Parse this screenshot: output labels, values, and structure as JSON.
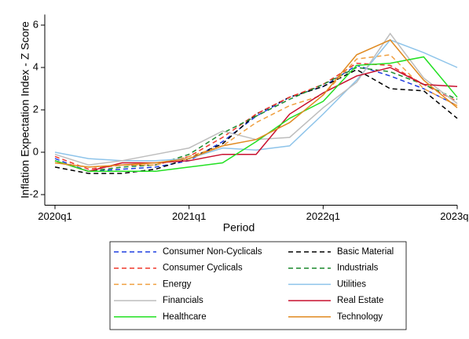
{
  "chart_data": {
    "type": "line",
    "x_label": "Period",
    "y_label": "Inflation Expectation Index - Z Score",
    "categories": [
      "2020q1",
      null,
      null,
      null,
      "2021q1",
      null,
      null,
      null,
      "2022q1",
      null,
      null,
      null,
      "2023q1"
    ],
    "ylim": [
      -2.5,
      6.5
    ],
    "yticks": [
      -2,
      0,
      2,
      4,
      6
    ],
    "grid": false,
    "series": [
      {
        "name": "Consumer Non-Cyclicals",
        "color": "#1f3ee0",
        "dashed": true,
        "values": [
          -0.3,
          -0.9,
          -0.8,
          -0.7,
          -0.4,
          0.5,
          1.7,
          2.6,
          3.1,
          4.1,
          3.6,
          3.0,
          2.2
        ]
      },
      {
        "name": "Basic Material",
        "color": "#000000",
        "dashed": true,
        "values": [
          -0.7,
          -1.0,
          -1.0,
          -0.8,
          -0.3,
          0.4,
          1.8,
          2.6,
          3.1,
          3.9,
          3.0,
          2.9,
          1.6
        ]
      },
      {
        "name": "Consumer Cyclicals",
        "color": "#f03a2e",
        "dashed": true,
        "values": [
          -0.2,
          -0.8,
          -0.6,
          -0.6,
          -0.2,
          0.7,
          1.8,
          2.6,
          3.2,
          4.2,
          4.1,
          3.2,
          2.4
        ]
      },
      {
        "name": "Industrials",
        "color": "#1c8a2e",
        "dashed": true,
        "values": [
          -0.4,
          -0.9,
          -0.7,
          -0.6,
          -0.1,
          0.9,
          1.7,
          2.5,
          3.2,
          4.0,
          3.8,
          3.2,
          2.5
        ]
      },
      {
        "name": "Energy",
        "color": "#f0a040",
        "dashed": true,
        "values": [
          -0.5,
          -0.7,
          -0.6,
          -0.6,
          -0.2,
          0.3,
          1.4,
          2.2,
          2.7,
          4.4,
          4.6,
          3.0,
          2.2
        ]
      },
      {
        "name": "Utilities",
        "color": "#8ec4ea",
        "dashed": false,
        "values": [
          0.0,
          -0.3,
          -0.4,
          -0.4,
          -0.3,
          0.2,
          0.1,
          0.3,
          1.8,
          3.4,
          5.3,
          4.7,
          4.0
        ]
      },
      {
        "name": "Financials",
        "color": "#bdbdbd",
        "dashed": false,
        "values": [
          -0.1,
          -0.6,
          -0.4,
          -0.1,
          0.2,
          1.0,
          0.6,
          0.7,
          2.1,
          3.3,
          5.6,
          3.5,
          2.3
        ]
      },
      {
        "name": "Real Estate",
        "color": "#c8102e",
        "dashed": false,
        "values": [
          -0.4,
          -0.9,
          -0.5,
          -0.5,
          -0.4,
          -0.1,
          -0.1,
          1.8,
          2.8,
          3.6,
          4.0,
          3.2,
          3.1
        ]
      },
      {
        "name": "Healthcare",
        "color": "#22e022",
        "dashed": false,
        "values": [
          -0.4,
          -0.9,
          -0.9,
          -0.9,
          -0.7,
          -0.5,
          0.5,
          1.6,
          2.4,
          4.1,
          4.2,
          4.5,
          2.6
        ]
      },
      {
        "name": "Technology",
        "color": "#e08a20",
        "dashed": false,
        "values": [
          -0.5,
          -0.7,
          -0.6,
          -0.5,
          -0.3,
          0.3,
          0.6,
          1.4,
          2.7,
          4.6,
          5.3,
          3.4,
          2.1
        ]
      }
    ]
  }
}
